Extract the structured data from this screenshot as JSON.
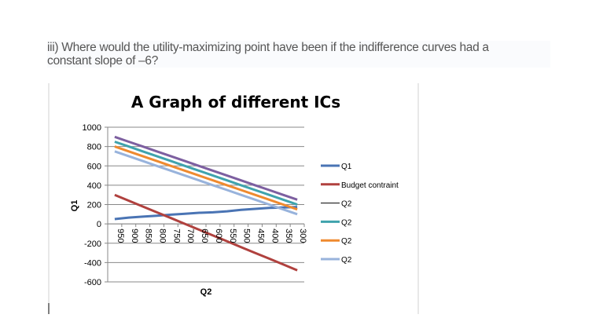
{
  "question": {
    "line1": "iii) Where would the utility-maximizing point have been if the indifference curves had a",
    "line2": "constant slope of –6?"
  },
  "chart_data": {
    "type": "line",
    "title": "A Graph of different ICs",
    "xlabel": "Q2",
    "ylabel": "Q1",
    "categories": [
      "950",
      "900",
      "850",
      "800",
      "750",
      "700",
      "650",
      "600",
      "550",
      "500",
      "450",
      "400",
      "350",
      "300"
    ],
    "ylim": [
      -600,
      1000
    ],
    "yticks": [
      "1000",
      "800",
      "600",
      "400",
      "200",
      "0",
      "-200",
      "-400",
      "-600"
    ],
    "grid": true,
    "legend_position": "right",
    "series": [
      {
        "name": "Q1",
        "color": "#4a74b4",
        "values": [
          50,
          65,
          75,
          85,
          95,
          105,
          115,
          120,
          130,
          145,
          155,
          165,
          170,
          175
        ]
      },
      {
        "name": "Budget contraint",
        "color": "#b0413e",
        "values": [
          300,
          240,
          180,
          120,
          60,
          0,
          -60,
          -120,
          -180,
          -240,
          -300,
          -360,
          -420,
          -480
        ]
      },
      {
        "name": "Q2",
        "color": "#7d5fa0",
        "values": [
          900,
          850,
          800,
          750,
          700,
          650,
          600,
          550,
          500,
          450,
          400,
          350,
          300,
          250
        ]
      },
      {
        "name": "Q2",
        "color": "#3fa3ad",
        "values": [
          850,
          800,
          750,
          700,
          650,
          600,
          550,
          500,
          450,
          400,
          350,
          300,
          250,
          200
        ]
      },
      {
        "name": "Q2",
        "color": "#ef8a2f",
        "values": [
          800,
          750,
          700,
          650,
          600,
          550,
          500,
          450,
          400,
          350,
          300,
          250,
          200,
          150
        ]
      },
      {
        "name": "Q2",
        "color": "#98b3dc",
        "values": [
          750,
          700,
          650,
          600,
          550,
          500,
          450,
          400,
          350,
          300,
          250,
          200,
          150,
          100
        ]
      }
    ]
  }
}
